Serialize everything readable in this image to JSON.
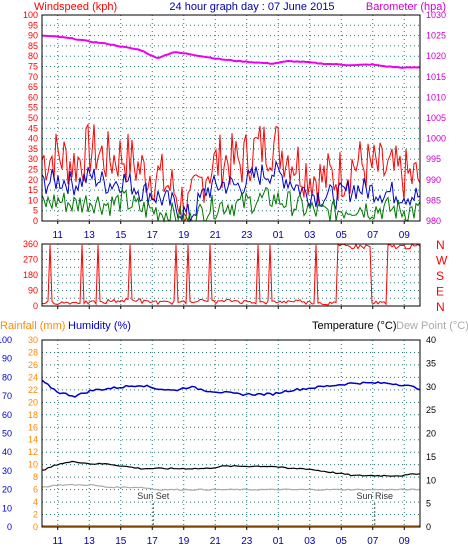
{
  "title": "24 hour graph day : 07 June 2015",
  "time_labels": [
    "11",
    "13",
    "15",
    "17",
    "19",
    "21",
    "23",
    "01",
    "03",
    "05",
    "07",
    "09"
  ],
  "colors": {
    "wind_label": "#ff0000",
    "baro_label": "#cc00cc",
    "dir_label": "#ff0000",
    "rain_label": "#ff8800",
    "humidity_label": "#0000cc",
    "temp_label": "#000000",
    "dew_label": "#aaaaaa",
    "grid": "#2a7a7a"
  },
  "chart_data": [
    {
      "type": "line",
      "title": "24 hour graph day : 07 June 2015",
      "ylabel": "Windspeed (kph)",
      "y2label": "Barometer (hpa)",
      "ylim": [
        0,
        100
      ],
      "y2lim": [
        980,
        1030
      ],
      "yticks": [
        0,
        5,
        10,
        15,
        20,
        25,
        30,
        35,
        40,
        45,
        50,
        55,
        60,
        65,
        70,
        75,
        80,
        85,
        90,
        95,
        100
      ],
      "y2ticks": [
        980,
        985,
        990,
        995,
        1000,
        1005,
        1010,
        1015,
        1020,
        1025,
        1030
      ],
      "x": [
        10,
        11,
        12,
        13,
        14,
        15,
        16,
        17,
        18,
        19,
        20,
        21,
        22,
        23,
        0,
        1,
        2,
        3,
        4,
        5,
        6,
        7,
        8,
        9
      ],
      "series": [
        {
          "name": "Windspeed gust",
          "color": "#ff0000",
          "values": [
            30,
            32,
            28,
            35,
            30,
            32,
            25,
            22,
            15,
            5,
            25,
            30,
            28,
            35,
            38,
            32,
            25,
            20,
            22,
            28,
            26,
            24,
            22,
            20
          ]
        },
        {
          "name": "Windspeed average",
          "color": "#0000cc",
          "values": [
            18,
            20,
            18,
            22,
            18,
            20,
            15,
            12,
            8,
            2,
            15,
            18,
            17,
            22,
            24,
            20,
            14,
            12,
            12,
            16,
            15,
            14,
            13,
            12
          ]
        },
        {
          "name": "Windspeed low",
          "color": "#007700",
          "values": [
            8,
            10,
            8,
            10,
            8,
            10,
            6,
            5,
            3,
            0,
            6,
            8,
            8,
            10,
            11,
            9,
            6,
            4,
            5,
            7,
            6,
            6,
            5,
            5
          ]
        },
        {
          "name": "Barometer",
          "color": "#ee00ee",
          "axis": "right",
          "values": [
            1025,
            1024.7,
            1024.2,
            1023.5,
            1023,
            1022.2,
            1021.5,
            1019.5,
            1021,
            1020.5,
            1019.8,
            1019.2,
            1018.8,
            1018.5,
            1018.2,
            1018.8,
            1018.6,
            1018.2,
            1018,
            1017.8,
            1018,
            1017.5,
            1017.2,
            1017.3
          ]
        }
      ]
    },
    {
      "type": "line",
      "ylabel": "Wind direction",
      "ylim": [
        0,
        360
      ],
      "yticks": [
        0,
        45,
        90,
        135,
        180,
        225,
        270,
        315,
        360
      ],
      "ytick_labels": [
        "0",
        "45",
        "90",
        "135",
        "180",
        "225",
        "270",
        "315",
        "360"
      ],
      "compass_labels": [
        "N",
        "W",
        "S",
        "E",
        "N"
      ],
      "x": [
        10,
        11,
        12,
        13,
        14,
        15,
        16,
        17,
        18,
        19,
        20,
        21,
        22,
        23,
        0,
        1,
        2,
        3,
        4,
        5,
        6,
        7,
        8,
        9
      ],
      "series": [
        {
          "name": "Wind direction",
          "color": "#ff0000",
          "values": [
            20,
            20,
            20,
            20,
            30,
            35,
            25,
            20,
            20,
            30,
            25,
            30,
            25,
            20,
            25,
            30,
            20,
            15,
            350,
            345,
            20,
            340,
            350,
            345
          ]
        }
      ]
    },
    {
      "type": "line",
      "ylabel": "Rainfall (mm)",
      "y2label": "Humidity (%)",
      "y3label": "Temperature (°C)",
      "y4label": "Dew Point (°C)",
      "rain_ylim": [
        0,
        30
      ],
      "rain_yticks": [
        0,
        2,
        4,
        6,
        8,
        10,
        12,
        14,
        16,
        18,
        20,
        22,
        24,
        26,
        28,
        30
      ],
      "humidity_ylim": [
        0,
        100
      ],
      "humidity_yticks": [
        0,
        10,
        20,
        30,
        40,
        50,
        60,
        70,
        80,
        90,
        100
      ],
      "temp_ylim": [
        0,
        40
      ],
      "temp_yticks": [
        0,
        5,
        10,
        15,
        20,
        25,
        30,
        35,
        40
      ],
      "annotations": [
        "Sun Set",
        "Sun Rise"
      ],
      "x": [
        10,
        11,
        12,
        13,
        14,
        15,
        16,
        17,
        18,
        19,
        20,
        21,
        22,
        23,
        0,
        1,
        2,
        3,
        4,
        5,
        6,
        7,
        8,
        9
      ],
      "series": [
        {
          "name": "Humidity",
          "color": "#0000cc",
          "axis": "humidity",
          "values": [
            78,
            72,
            70,
            73,
            74,
            75,
            76,
            74,
            73,
            75,
            73,
            72,
            71,
            71,
            71,
            73,
            74,
            75,
            76,
            77,
            77,
            77,
            76,
            74
          ]
        },
        {
          "name": "Temperature",
          "color": "#000000",
          "axis": "temp",
          "values": [
            12,
            13.5,
            14,
            13.5,
            13.5,
            13,
            12.5,
            12.5,
            12.5,
            12.5,
            12.5,
            13,
            13,
            13,
            13,
            12.5,
            12.5,
            12,
            11.5,
            11,
            11,
            11,
            11,
            11.5
          ]
        },
        {
          "name": "Dew Point",
          "color": "#aaaaaa",
          "axis": "temp",
          "values": [
            8.5,
            9,
            9,
            9,
            8.5,
            8.5,
            8.5,
            8,
            8,
            8,
            8,
            8,
            8,
            8,
            8,
            8,
            8,
            8,
            8,
            8,
            8,
            8,
            8,
            8
          ]
        },
        {
          "name": "Rainfall",
          "color": "#ff8800",
          "axis": "rain",
          "values": [
            0,
            0,
            0,
            0,
            0,
            0,
            0,
            0,
            0,
            0,
            0,
            0,
            0,
            0,
            0,
            0,
            0,
            0,
            0,
            0,
            0,
            0,
            0,
            0
          ]
        }
      ]
    }
  ]
}
